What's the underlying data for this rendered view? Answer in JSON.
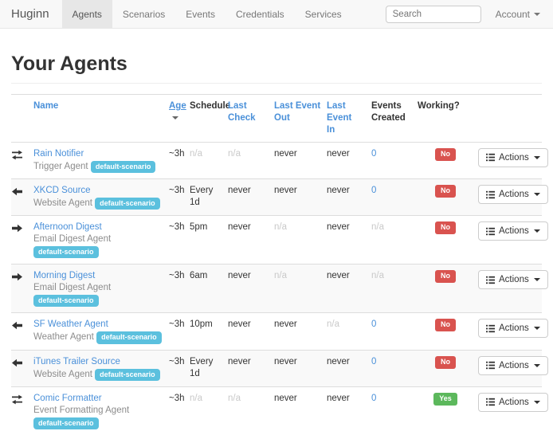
{
  "navbar": {
    "brand": "Huginn",
    "items": [
      {
        "label": "Agents",
        "active": true
      },
      {
        "label": "Scenarios",
        "active": false
      },
      {
        "label": "Events",
        "active": false
      },
      {
        "label": "Credentials",
        "active": false
      },
      {
        "label": "Services",
        "active": false
      }
    ],
    "search": {
      "placeholder": "Search"
    },
    "account": {
      "label": "Account"
    }
  },
  "page": {
    "title": "Your Agents"
  },
  "agents_table": {
    "columns": [
      {
        "key": "name",
        "label": "Name",
        "label_lines": [
          "Name"
        ],
        "style": "link"
      },
      {
        "key": "age",
        "label": "Age",
        "label_lines": [
          "Age"
        ],
        "style": "link",
        "sort": "desc"
      },
      {
        "key": "schedule",
        "label": "Schedule",
        "label_lines": [
          "Schedule"
        ],
        "style": "plain"
      },
      {
        "key": "last_check",
        "label": "Last Check",
        "label_lines": [
          "Last",
          "Check"
        ],
        "style": "link"
      },
      {
        "key": "last_event_out",
        "label": "Last Event Out",
        "label_lines": [
          "Last Event",
          "Out"
        ],
        "style": "link"
      },
      {
        "key": "last_event_in",
        "label": "Last Event In",
        "label_lines": [
          "Last Event",
          "In"
        ],
        "style": "link"
      },
      {
        "key": "events_created",
        "label": "Events Created",
        "label_lines": [
          "Events",
          "Created"
        ],
        "style": "plain"
      },
      {
        "key": "working",
        "label": "Working?",
        "label_lines": [
          "Working?"
        ],
        "style": "plain"
      }
    ],
    "actions_button_label": "Actions",
    "rows": [
      {
        "flow_icon": "exchange-icon",
        "name": "Rain Notifier",
        "agent_type": "Trigger Agent",
        "scenario_badge": "default-scenario",
        "age": "~3h",
        "schedule": {
          "text": "n/a",
          "muted": true
        },
        "last_check": {
          "text": "n/a",
          "muted": true
        },
        "last_event_out": {
          "text": "never",
          "muted": false
        },
        "last_event_in": {
          "text": "never",
          "muted": false
        },
        "events_created": {
          "text": "0",
          "link": true
        },
        "working": {
          "label": "No",
          "status": "danger"
        }
      },
      {
        "flow_icon": "arrow-left-icon",
        "name": "XKCD Source",
        "agent_type": "Website Agent",
        "scenario_badge": "default-scenario",
        "age": "~3h",
        "schedule": {
          "text": "Every 1d",
          "muted": false
        },
        "last_check": {
          "text": "never",
          "muted": false
        },
        "last_event_out": {
          "text": "never",
          "muted": false
        },
        "last_event_in": {
          "text": "never",
          "muted": false
        },
        "events_created": {
          "text": "0",
          "link": true
        },
        "working": {
          "label": "No",
          "status": "danger"
        }
      },
      {
        "flow_icon": "arrow-right-icon",
        "name": "Afternoon Digest",
        "agent_type": "Email Digest Agent",
        "scenario_badge": "default-scenario",
        "age": "~3h",
        "schedule": {
          "text": "5pm",
          "muted": false
        },
        "last_check": {
          "text": "never",
          "muted": false
        },
        "last_event_out": {
          "text": "n/a",
          "muted": true
        },
        "last_event_in": {
          "text": "never",
          "muted": false
        },
        "events_created": {
          "text": "n/a",
          "muted": true
        },
        "working": {
          "label": "No",
          "status": "danger"
        }
      },
      {
        "flow_icon": "arrow-right-icon",
        "name": "Morning Digest",
        "agent_type": "Email Digest Agent",
        "scenario_badge": "default-scenario",
        "age": "~3h",
        "schedule": {
          "text": "6am",
          "muted": false
        },
        "last_check": {
          "text": "never",
          "muted": false
        },
        "last_event_out": {
          "text": "n/a",
          "muted": true
        },
        "last_event_in": {
          "text": "never",
          "muted": false
        },
        "events_created": {
          "text": "n/a",
          "muted": true
        },
        "working": {
          "label": "No",
          "status": "danger"
        }
      },
      {
        "flow_icon": "arrow-left-icon",
        "name": "SF Weather Agent",
        "agent_type": "Weather Agent",
        "scenario_badge": "default-scenario",
        "age": "~3h",
        "schedule": {
          "text": "10pm",
          "muted": false
        },
        "last_check": {
          "text": "never",
          "muted": false
        },
        "last_event_out": {
          "text": "never",
          "muted": false
        },
        "last_event_in": {
          "text": "n/a",
          "muted": true
        },
        "events_created": {
          "text": "0",
          "link": true
        },
        "working": {
          "label": "No",
          "status": "danger"
        }
      },
      {
        "flow_icon": "arrow-left-icon",
        "name": "iTunes Trailer Source",
        "agent_type": "Website Agent",
        "scenario_badge": "default-scenario",
        "age": "~3h",
        "schedule": {
          "text": "Every 1d",
          "muted": false
        },
        "last_check": {
          "text": "never",
          "muted": false
        },
        "last_event_out": {
          "text": "never",
          "muted": false
        },
        "last_event_in": {
          "text": "never",
          "muted": false
        },
        "events_created": {
          "text": "0",
          "link": true
        },
        "working": {
          "label": "No",
          "status": "danger"
        }
      },
      {
        "flow_icon": "exchange-icon",
        "name": "Comic Formatter",
        "agent_type": "Event Formatting Agent",
        "scenario_badge": "default-scenario",
        "age": "~3h",
        "schedule": {
          "text": "n/a",
          "muted": true
        },
        "last_check": {
          "text": "n/a",
          "muted": true
        },
        "last_event_out": {
          "text": "never",
          "muted": false
        },
        "last_event_in": {
          "text": "never",
          "muted": false
        },
        "events_created": {
          "text": "0",
          "link": true
        },
        "working": {
          "label": "Yes",
          "status": "success"
        }
      }
    ]
  },
  "colors": {
    "link": "#4a90d9",
    "badge_scenario": "#5bc0de",
    "badge_danger": "#d9534f",
    "badge_success": "#5cb85c",
    "navbar_bg": "#f8f8f8",
    "navbar_active_bg": "#e7e7e7",
    "row_stripe": "#f9f9f9",
    "muted_text": "#c9c9c9"
  }
}
